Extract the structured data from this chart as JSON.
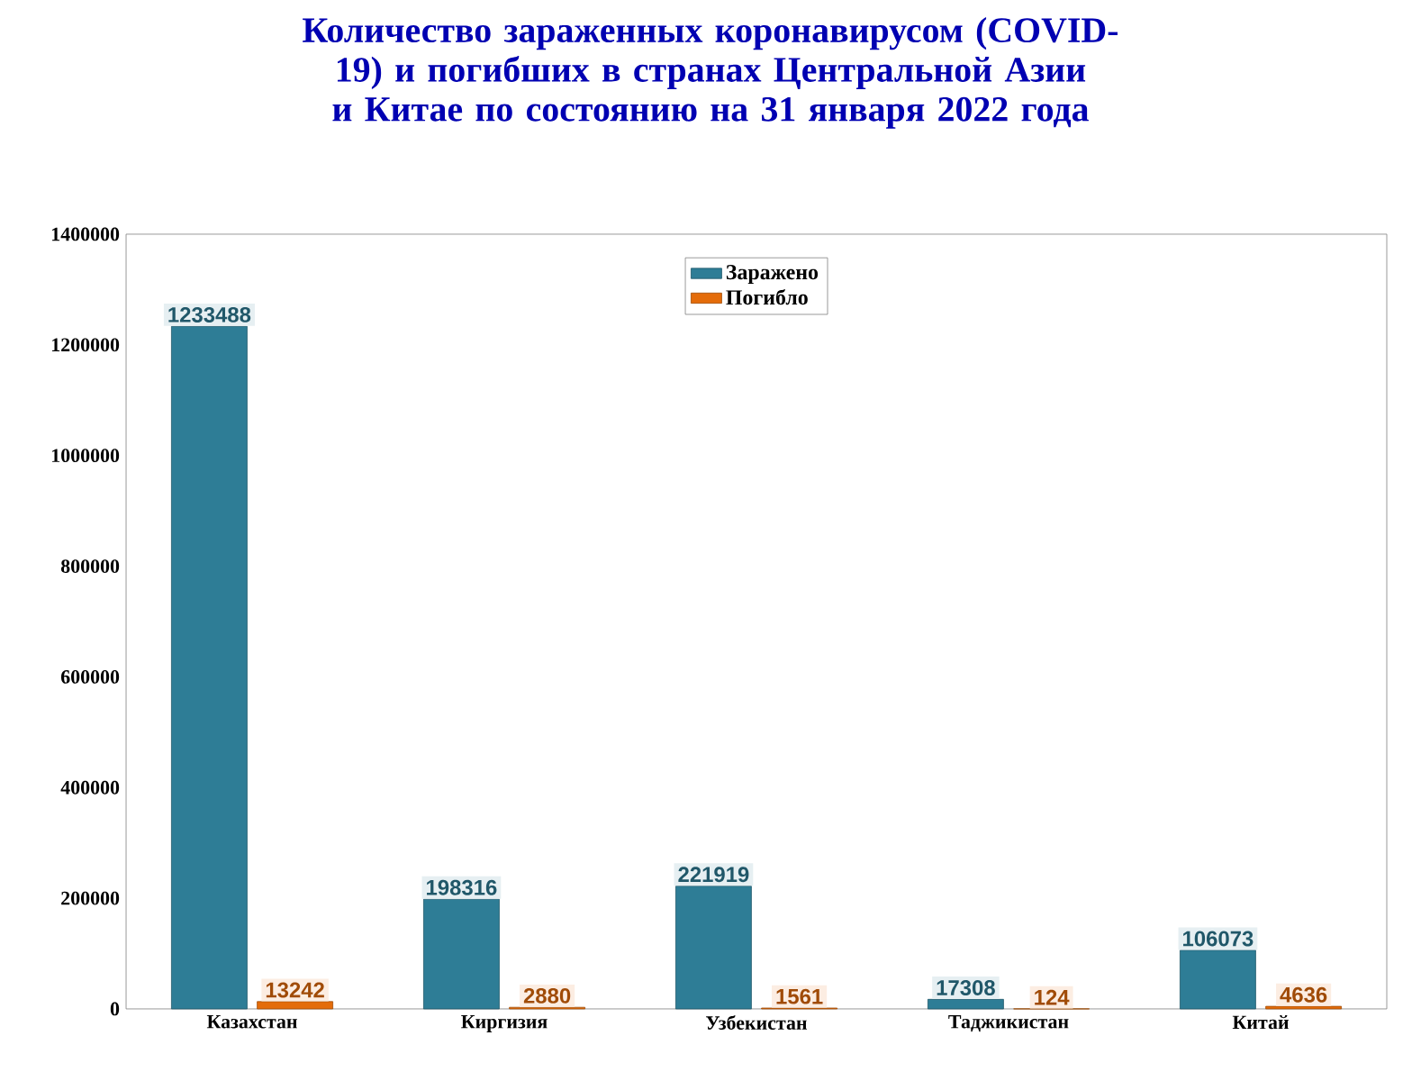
{
  "chart_data": {
    "type": "bar",
    "title": "Количество зараженных коронавирусом (COVID-19) и погибших в странах Центральной Азии и Китае по состоянию на 31 января 2022 года",
    "categories": [
      "Казахстан",
      "Киргизия",
      "Узбекистан",
      "Таджикистан",
      "Китай"
    ],
    "series": [
      {
        "name": "Заражено",
        "color": "#2e7d96",
        "values": [
          1233488,
          198316,
          221919,
          17308,
          106073
        ]
      },
      {
        "name": "Погибло",
        "color": "#e46c0a",
        "values": [
          13242,
          2880,
          1561,
          124,
          4636
        ]
      }
    ],
    "ylim": [
      0,
      1400000
    ],
    "yticks": [
      0,
      200000,
      400000,
      600000,
      800000,
      1000000,
      1200000,
      1400000
    ],
    "data_labels": true,
    "legend": "top",
    "grid": false
  }
}
